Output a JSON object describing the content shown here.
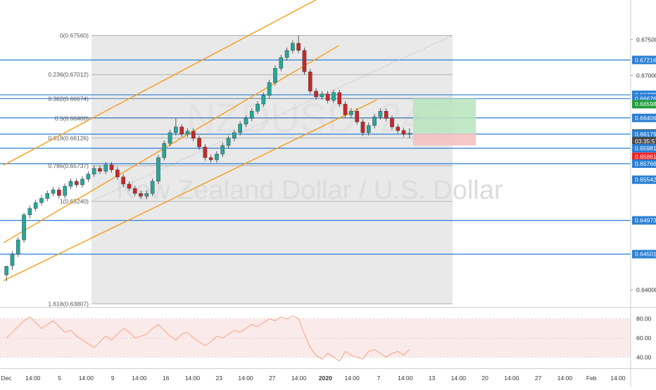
{
  "watermark": {
    "symbol": "NZDUSD, 240",
    "description": "New Zealand Dollar / U.S. Dollar"
  },
  "colors": {
    "up": "#26a69a",
    "down": "#c62828",
    "channel": "#f59c1a",
    "hline": "#2a7fd4",
    "fib_zone": "#e9e9e9",
    "rsi_line": "#f4a582",
    "rsi_band": "#fbeaea",
    "label_green": "#1f9d38",
    "label_red": "#f21c1c",
    "label_blue": "#2a7fd4",
    "label_dark": "#4a4a4a"
  },
  "chart_data": {
    "type": "candlestick",
    "price_axis": {
      "labels": [
        {
          "text": "0.67500",
          "value": 0.675,
          "style": "plain"
        },
        {
          "text": "0.67216",
          "value": 0.67216,
          "style": "blue"
        },
        {
          "text": "0.67000",
          "value": 0.67,
          "style": "plain"
        },
        {
          "text": "0.66729",
          "value": 0.66729,
          "style": "blue"
        },
        {
          "text": "0.66676",
          "value": 0.66676,
          "style": "blue"
        },
        {
          "text": "0.66598",
          "value": 0.66598,
          "style": "green"
        },
        {
          "text": "0.66406",
          "value": 0.66406,
          "style": "blue"
        },
        {
          "text": "0.66188",
          "value": 0.66188,
          "style": "dark"
        },
        {
          "text": "0.66179",
          "value": 0.66179,
          "style": "blue"
        },
        {
          "text": "03:35:57",
          "value": 0.66081,
          "style": "dark"
        },
        {
          "text": "0.65981",
          "value": 0.65981,
          "style": "blue"
        },
        {
          "text": "0.65861",
          "value": 0.65861,
          "style": "red"
        },
        {
          "text": "0.65766",
          "value": 0.65766,
          "style": "blue"
        },
        {
          "text": "0.65542",
          "value": 0.65542,
          "style": "blue"
        },
        {
          "text": "0.64973",
          "value": 0.64973,
          "style": "blue"
        },
        {
          "text": "0.64501",
          "value": 0.64501,
          "style": "blue"
        },
        {
          "text": "0.64000",
          "value": 0.64,
          "style": "plain"
        }
      ]
    },
    "horizontal_levels": [
      0.67216,
      0.66729,
      0.66676,
      0.66406,
      0.66179,
      0.65981,
      0.65766,
      0.64973,
      0.64501
    ],
    "fibonacci": {
      "levels": [
        {
          "label": "0(0.67560)",
          "value": 0.6756
        },
        {
          "label": "0.236(0.67012)",
          "value": 0.67012
        },
        {
          "label": "0.382(0.66674)",
          "value": 0.66674
        },
        {
          "label": "0.5(0.66400)",
          "value": 0.664
        },
        {
          "label": "0.618(0.66126)",
          "value": 0.66126
        },
        {
          "label": "0.786(0.65737)",
          "value": 0.65737
        },
        {
          "label": "1(0.65240)",
          "value": 0.6524
        },
        {
          "label": "1.618(0.63807)",
          "value": 0.63807
        }
      ]
    },
    "channel_lines": [
      {
        "start": [
          0,
          0.65745
        ],
        "end": [
          56.3,
          0.68179
        ]
      },
      {
        "start": [
          0,
          0.6466
        ],
        "end": [
          57.4,
          0.67418
        ]
      },
      {
        "start": [
          0,
          0.6413
        ],
        "end": [
          63.9,
          0.66658
        ]
      }
    ],
    "position": {
      "entry": 0.66188,
      "target": 0.66676,
      "stop": 0.66021
    },
    "candles": [
      [
        0.6421,
        0.6433,
        0.6412,
        0.6434
      ],
      [
        0.6434,
        0.645,
        0.6428,
        0.6454
      ],
      [
        0.645,
        0.647,
        0.6446,
        0.6474
      ],
      [
        0.647,
        0.6505,
        0.6466,
        0.6508
      ],
      [
        0.6505,
        0.6514,
        0.65,
        0.6518
      ],
      [
        0.6514,
        0.6522,
        0.651,
        0.6526
      ],
      [
        0.6522,
        0.6528,
        0.6518,
        0.6532
      ],
      [
        0.6528,
        0.6535,
        0.6524,
        0.6539
      ],
      [
        0.6535,
        0.654,
        0.6531,
        0.6544
      ],
      [
        0.654,
        0.6532,
        0.6528,
        0.6544
      ],
      [
        0.6532,
        0.6545,
        0.6528,
        0.6549
      ],
      [
        0.6545,
        0.6552,
        0.6541,
        0.6556
      ],
      [
        0.6552,
        0.6547,
        0.6543,
        0.6556
      ],
      [
        0.6547,
        0.6555,
        0.6543,
        0.6559
      ],
      [
        0.6555,
        0.6562,
        0.6551,
        0.6566
      ],
      [
        0.6562,
        0.657,
        0.6558,
        0.6574
      ],
      [
        0.657,
        0.6566,
        0.6562,
        0.6574
      ],
      [
        0.6566,
        0.6575,
        0.6562,
        0.6579
      ],
      [
        0.6575,
        0.6568,
        0.6564,
        0.6579
      ],
      [
        0.6568,
        0.6558,
        0.6554,
        0.6572
      ],
      [
        0.6558,
        0.6548,
        0.6544,
        0.6562
      ],
      [
        0.6548,
        0.6542,
        0.6538,
        0.6552
      ],
      [
        0.6542,
        0.6535,
        0.6531,
        0.6546
      ],
      [
        0.6535,
        0.6531,
        0.6527,
        0.6539
      ],
      [
        0.6531,
        0.6535,
        0.6527,
        0.6539
      ],
      [
        0.6535,
        0.6552,
        0.6531,
        0.6556
      ],
      [
        0.6552,
        0.6585,
        0.6548,
        0.6589
      ],
      [
        0.6585,
        0.6605,
        0.6581,
        0.6609
      ],
      [
        0.6605,
        0.662,
        0.6601,
        0.6624
      ],
      [
        0.662,
        0.6628,
        0.6616,
        0.664
      ],
      [
        0.6628,
        0.6618,
        0.6614,
        0.6632
      ],
      [
        0.6618,
        0.6622,
        0.6614,
        0.6626
      ],
      [
        0.6622,
        0.6612,
        0.6608,
        0.6626
      ],
      [
        0.6612,
        0.66,
        0.6596,
        0.6616
      ],
      [
        0.66,
        0.6585,
        0.6581,
        0.6604
      ],
      [
        0.6585,
        0.6582,
        0.6578,
        0.6589
      ],
      [
        0.6582,
        0.659,
        0.6578,
        0.6594
      ],
      [
        0.659,
        0.6602,
        0.6586,
        0.6606
      ],
      [
        0.6602,
        0.6612,
        0.6598,
        0.6616
      ],
      [
        0.6612,
        0.662,
        0.6608,
        0.6624
      ],
      [
        0.662,
        0.6632,
        0.6616,
        0.6636
      ],
      [
        0.6632,
        0.664,
        0.6628,
        0.6644
      ],
      [
        0.664,
        0.665,
        0.6636,
        0.6654
      ],
      [
        0.665,
        0.666,
        0.6646,
        0.6664
      ],
      [
        0.666,
        0.6672,
        0.6656,
        0.6676
      ],
      [
        0.6672,
        0.669,
        0.6668,
        0.6694
      ],
      [
        0.669,
        0.671,
        0.6686,
        0.6714
      ],
      [
        0.671,
        0.6725,
        0.6706,
        0.6729
      ],
      [
        0.6725,
        0.6735,
        0.6721,
        0.6739
      ],
      [
        0.6735,
        0.6745,
        0.6731,
        0.6749
      ],
      [
        0.6745,
        0.6735,
        0.6731,
        0.6756
      ],
      [
        0.6735,
        0.6705,
        0.6701,
        0.6739
      ],
      [
        0.6705,
        0.6678,
        0.6674,
        0.6709
      ],
      [
        0.6678,
        0.667,
        0.6666,
        0.6682
      ],
      [
        0.667,
        0.6674,
        0.6666,
        0.6678
      ],
      [
        0.6674,
        0.6665,
        0.6661,
        0.6678
      ],
      [
        0.6665,
        0.6676,
        0.6661,
        0.668
      ],
      [
        0.6676,
        0.666,
        0.6656,
        0.668
      ],
      [
        0.666,
        0.6645,
        0.6641,
        0.6664
      ],
      [
        0.6645,
        0.665,
        0.6641,
        0.6654
      ],
      [
        0.665,
        0.6635,
        0.6631,
        0.6654
      ],
      [
        0.6635,
        0.662,
        0.6616,
        0.6639
      ],
      [
        0.662,
        0.663,
        0.6616,
        0.6634
      ],
      [
        0.663,
        0.6642,
        0.6626,
        0.6646
      ],
      [
        0.6642,
        0.665,
        0.6638,
        0.6654
      ],
      [
        0.665,
        0.664,
        0.6636,
        0.6654
      ],
      [
        0.664,
        0.6628,
        0.6624,
        0.6644
      ],
      [
        0.6628,
        0.6623,
        0.6619,
        0.6632
      ],
      [
        0.6623,
        0.6618,
        0.6614,
        0.6627
      ],
      [
        0.6618,
        0.6619,
        0.6612,
        0.6626
      ]
    ],
    "rsi": {
      "axis_labels": [
        {
          "text": "80.00",
          "value": 80
        },
        {
          "text": "60.00",
          "value": 60
        },
        {
          "text": "40.00",
          "value": 40
        }
      ],
      "values": [
        60,
        66,
        72,
        78,
        82,
        76,
        70,
        74,
        78,
        72,
        66,
        68,
        62,
        58,
        54,
        50,
        56,
        62,
        58,
        64,
        70,
        66,
        60,
        62,
        64,
        70,
        74,
        68,
        62,
        58,
        64,
        66,
        60,
        56,
        52,
        56,
        62,
        60,
        64,
        68,
        66,
        70,
        74,
        72,
        76,
        80,
        78,
        82,
        80,
        83,
        80,
        64,
        50,
        42,
        38,
        44,
        40,
        36,
        46,
        42,
        40,
        38,
        46,
        48,
        44,
        40,
        44,
        46,
        42,
        48
      ]
    },
    "time_axis": {
      "labels": [
        "Dec",
        "14:00",
        "5",
        "14:00",
        "9",
        "14:00",
        "16",
        "14:00",
        "23",
        "14:00",
        "27",
        "14:00",
        "2020",
        "14:00",
        "7",
        "14:00",
        "13",
        "14:00",
        "20",
        "14:00",
        "27",
        "14:00",
        "Feb",
        "14:00"
      ]
    }
  }
}
